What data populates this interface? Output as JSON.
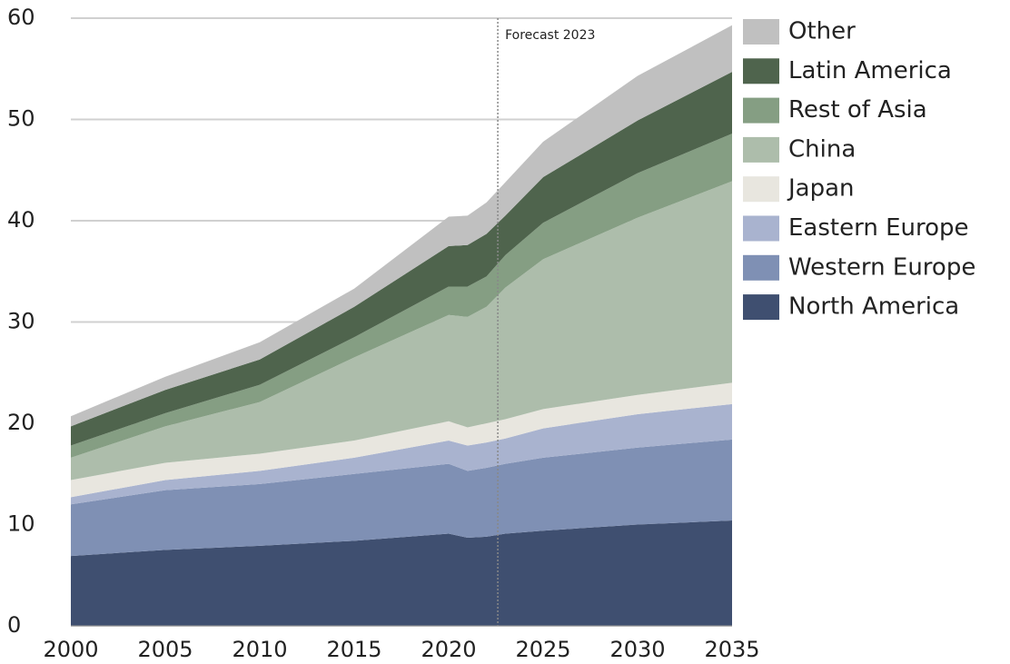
{
  "chart_data": {
    "type": "stacked_area",
    "x": [
      2000,
      2005,
      2010,
      2015,
      2020,
      2021,
      2022,
      2023,
      2025,
      2030,
      2035
    ],
    "series": [
      {
        "name": "North America",
        "color": "#3f4f70",
        "values": [
          6.9,
          7.5,
          7.9,
          8.4,
          9.1,
          8.7,
          8.8,
          9.1,
          9.4,
          10.0,
          10.4
        ]
      },
      {
        "name": "Western Europe",
        "color": "#7f90b4",
        "values": [
          5.1,
          5.9,
          6.1,
          6.6,
          6.9,
          6.6,
          6.8,
          6.9,
          7.2,
          7.6,
          8.0
        ]
      },
      {
        "name": "Eastern Europe",
        "color": "#a9b3cf",
        "values": [
          0.7,
          1.0,
          1.3,
          1.6,
          2.3,
          2.5,
          2.5,
          2.5,
          2.9,
          3.3,
          3.5
        ]
      },
      {
        "name": "Japan",
        "color": "#e8e6df",
        "values": [
          1.7,
          1.7,
          1.7,
          1.7,
          1.9,
          1.8,
          1.9,
          1.9,
          1.9,
          1.9,
          2.1
        ]
      },
      {
        "name": "China",
        "color": "#adbdab",
        "values": [
          2.2,
          3.6,
          5.1,
          8.2,
          10.5,
          10.9,
          11.5,
          13.0,
          14.8,
          17.5,
          19.9
        ]
      },
      {
        "name": "Rest of Asia",
        "color": "#859e83",
        "values": [
          1.2,
          1.3,
          1.7,
          2.0,
          2.8,
          3.0,
          3.0,
          3.2,
          3.6,
          4.4,
          4.7
        ]
      },
      {
        "name": "Latin America",
        "color": "#4f644d",
        "values": [
          1.9,
          2.3,
          2.5,
          3.0,
          4.0,
          4.1,
          4.2,
          3.9,
          4.5,
          5.2,
          6.1
        ]
      },
      {
        "name": "Other",
        "color": "#c0c0c0",
        "values": [
          1.0,
          1.3,
          1.7,
          1.8,
          2.9,
          2.9,
          3.1,
          3.3,
          3.5,
          4.4,
          4.6
        ]
      }
    ],
    "xlim": [
      2000,
      2035
    ],
    "xticks": [
      2000,
      2005,
      2010,
      2015,
      2020,
      2025,
      2030,
      2035
    ],
    "ylim": [
      0,
      60
    ],
    "yticks": [
      0,
      10,
      20,
      30,
      40,
      50,
      60
    ],
    "grid": true,
    "forecast_line": {
      "x": 2022.6,
      "label": "Forecast 2023"
    },
    "legend": "right"
  }
}
